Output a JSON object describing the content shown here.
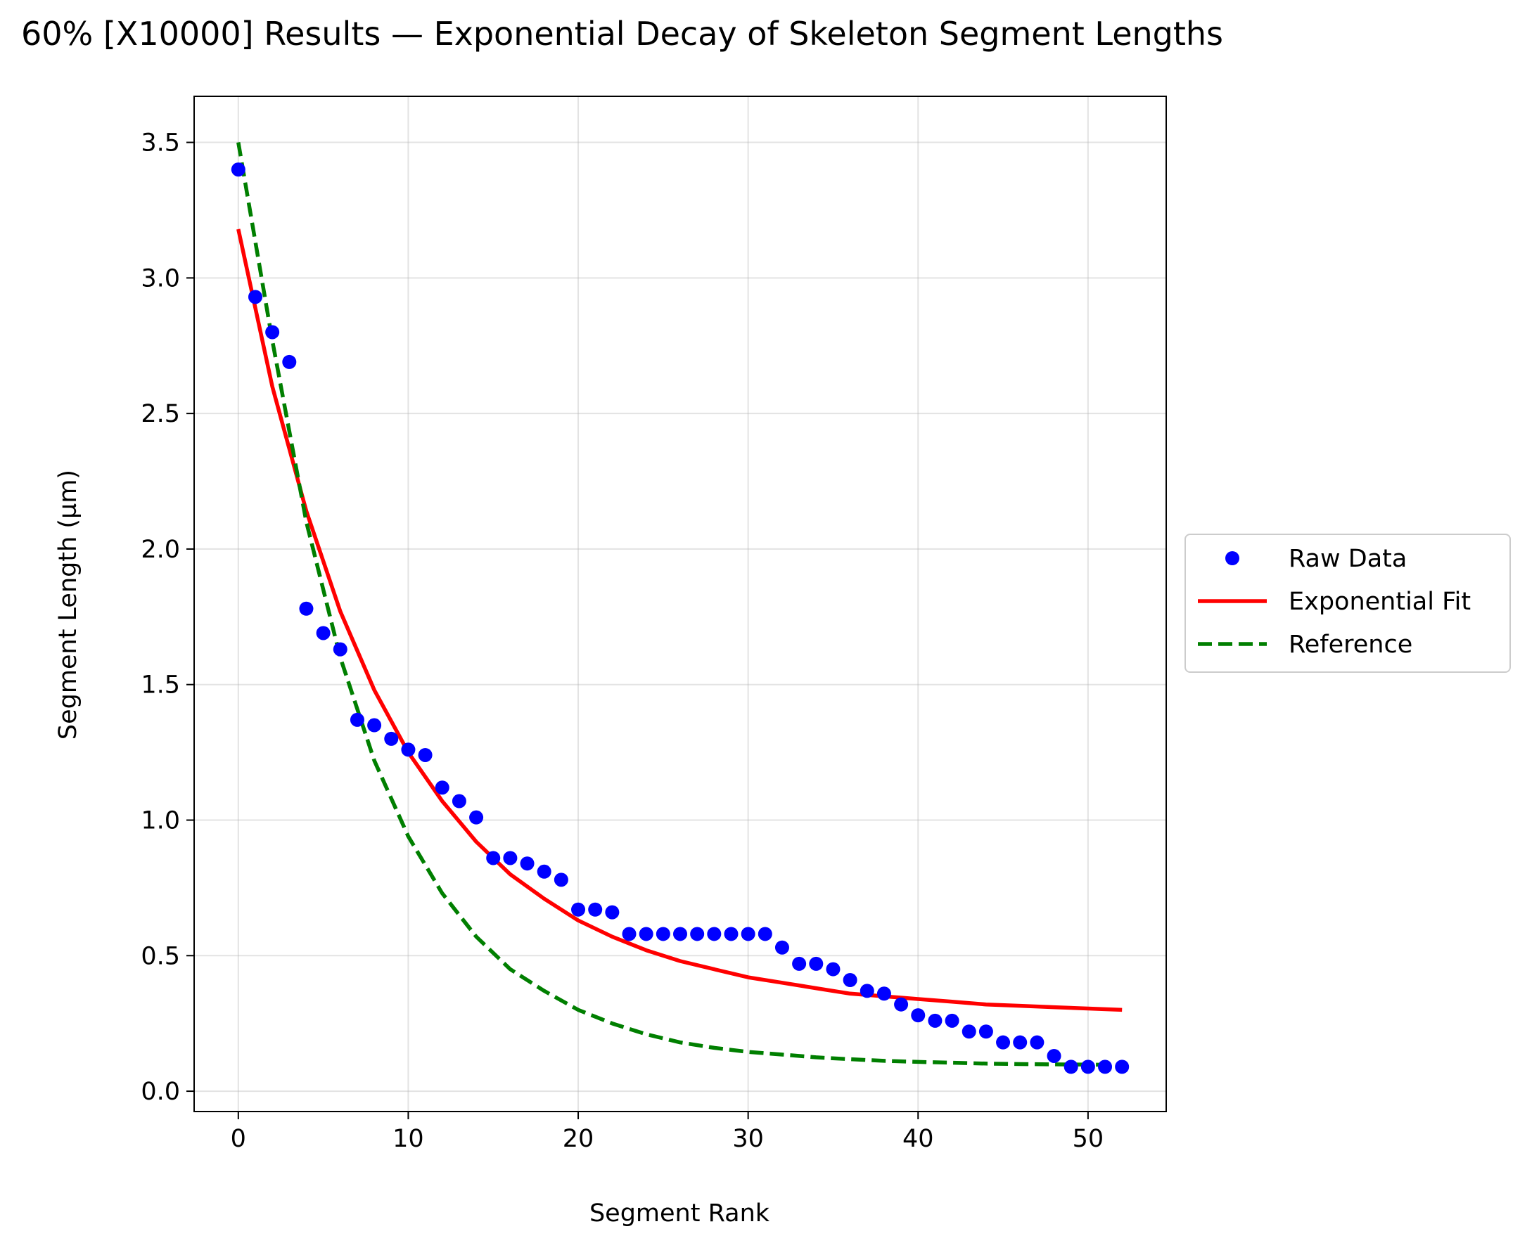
{
  "chart_data": {
    "type": "scatter",
    "title": "60% [X10000] Results — Exponential Decay of Skeleton Segment Lengths",
    "xlabel": "Segment Rank",
    "ylabel": "Segment Length (µm)",
    "xlim": [
      -2.6,
      54.6
    ],
    "ylim": [
      -0.075,
      3.67
    ],
    "xticks": [
      0,
      10,
      20,
      30,
      40,
      50
    ],
    "xtick_labels": [
      "0",
      "10",
      "20",
      "30",
      "40",
      "50"
    ],
    "yticks": [
      0.0,
      0.5,
      1.0,
      1.5,
      2.0,
      2.5,
      3.0,
      3.5
    ],
    "ytick_labels": [
      "0.0",
      "0.5",
      "1.0",
      "1.5",
      "2.0",
      "2.5",
      "3.0",
      "3.5"
    ],
    "grid": true,
    "legend_position": "outside-right",
    "series": [
      {
        "name": "Raw Data",
        "kind": "scatter",
        "color": "#0000ff",
        "x": [
          0,
          1,
          2,
          3,
          4,
          5,
          6,
          7,
          8,
          9,
          10,
          11,
          12,
          13,
          14,
          15,
          16,
          17,
          18,
          19,
          20,
          21,
          22,
          23,
          24,
          25,
          26,
          27,
          28,
          29,
          30,
          31,
          32,
          33,
          34,
          35,
          36,
          37,
          38,
          39,
          40,
          41,
          42,
          43,
          44,
          45,
          46,
          47,
          48,
          49,
          50,
          51,
          52
        ],
        "y": [
          3.4,
          2.93,
          2.8,
          2.69,
          1.78,
          1.69,
          1.63,
          1.37,
          1.35,
          1.3,
          1.26,
          1.24,
          1.12,
          1.07,
          1.01,
          0.86,
          0.86,
          0.84,
          0.81,
          0.78,
          0.67,
          0.67,
          0.66,
          0.58,
          0.58,
          0.58,
          0.58,
          0.58,
          0.58,
          0.58,
          0.58,
          0.58,
          0.53,
          0.47,
          0.47,
          0.45,
          0.41,
          0.37,
          0.36,
          0.32,
          0.28,
          0.26,
          0.26,
          0.22,
          0.22,
          0.18,
          0.18,
          0.18,
          0.13,
          0.09,
          0.09,
          0.09,
          0.09
        ]
      },
      {
        "name": "Exponential Fit",
        "kind": "line",
        "color": "#ff0000",
        "dash": "solid",
        "x": [
          0,
          2,
          4,
          6,
          8,
          10,
          12,
          14,
          16,
          18,
          20,
          22,
          24,
          26,
          28,
          30,
          32,
          34,
          36,
          38,
          40,
          42,
          44,
          46,
          48,
          50,
          52
        ],
        "y": [
          3.18,
          2.6,
          2.14,
          1.77,
          1.48,
          1.25,
          1.07,
          0.92,
          0.8,
          0.71,
          0.63,
          0.57,
          0.52,
          0.48,
          0.45,
          0.42,
          0.4,
          0.38,
          0.36,
          0.35,
          0.34,
          0.33,
          0.32,
          0.315,
          0.31,
          0.305,
          0.3
        ]
      },
      {
        "name": "Reference",
        "kind": "line",
        "color": "#007f00",
        "dash": "dashed",
        "x": [
          0,
          2,
          4,
          6,
          8,
          10,
          12,
          14,
          16,
          18,
          20,
          22,
          24,
          26,
          28,
          30,
          32,
          34,
          36,
          38,
          40,
          42,
          44,
          46,
          48,
          50,
          52
        ],
        "y": [
          3.5,
          2.77,
          2.1,
          1.6,
          1.22,
          0.94,
          0.73,
          0.57,
          0.45,
          0.37,
          0.3,
          0.25,
          0.21,
          0.18,
          0.16,
          0.145,
          0.135,
          0.125,
          0.118,
          0.112,
          0.108,
          0.105,
          0.102,
          0.1,
          0.099,
          0.098,
          0.097
        ]
      }
    ]
  }
}
